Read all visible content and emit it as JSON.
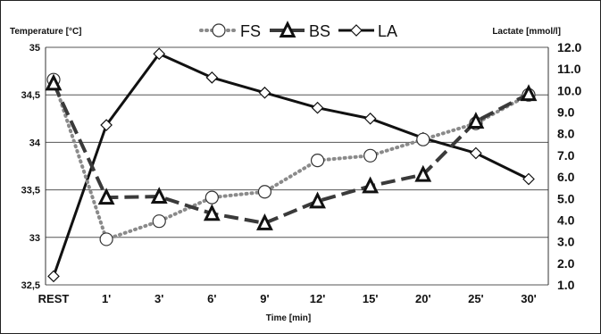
{
  "chart_data": {
    "type": "line",
    "title": "",
    "xlabel": "Time [min]",
    "ylabel_left": "Temperature [°C]",
    "ylabel_right": "Lactate [mmol/l]",
    "categories": [
      "REST",
      "1'",
      "3'",
      "6'",
      "9'",
      "12'",
      "15'",
      "20'",
      "25'",
      "30'"
    ],
    "y_left": {
      "min": 32.5,
      "max": 35,
      "ticks": [
        "32,5",
        "33",
        "33,5",
        "34",
        "34,5",
        "35"
      ],
      "tick_values": [
        32.5,
        33,
        33.5,
        34,
        34.5,
        35
      ]
    },
    "y_right": {
      "min": 1.0,
      "max": 12.0,
      "ticks": [
        "1.0",
        "2.0",
        "3.0",
        "4.0",
        "5.0",
        "6.0",
        "7.0",
        "8.0",
        "9.0",
        "10.0",
        "11.0",
        "12.0"
      ],
      "tick_values": [
        1,
        2,
        3,
        4,
        5,
        6,
        7,
        8,
        9,
        10,
        11,
        12
      ]
    },
    "grid": "horizontal",
    "legend": "top-center",
    "series": [
      {
        "name": "FS",
        "axis": "left",
        "style": "dotted",
        "marker": "circle",
        "color": "#8a8a8a",
        "values": [
          34.66,
          32.98,
          33.17,
          33.42,
          33.48,
          33.81,
          33.86,
          34.03,
          34.2,
          34.5
        ]
      },
      {
        "name": "BS",
        "axis": "left",
        "style": "dashed",
        "marker": "triangle",
        "color": "#3a3a3a",
        "values": [
          34.62,
          33.42,
          33.43,
          33.25,
          33.15,
          33.38,
          33.54,
          33.66,
          34.22,
          34.51
        ]
      },
      {
        "name": "LA",
        "axis": "right",
        "style": "solid",
        "marker": "diamond",
        "color": "#111111",
        "values": [
          1.4,
          8.4,
          11.7,
          10.6,
          9.9,
          9.2,
          8.7,
          7.8,
          7.1,
          5.9
        ]
      }
    ]
  }
}
